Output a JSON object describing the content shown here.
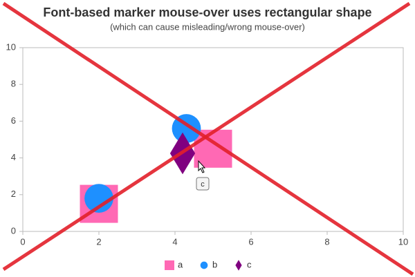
{
  "chart_data": {
    "type": "scatter",
    "title": "Font-based marker mouse-over uses rectangular shape",
    "subtitle": "(which can cause misleading/wrong mouse-over)",
    "xlim": [
      0,
      10
    ],
    "xticks": [
      0,
      2,
      4,
      6,
      8,
      10
    ],
    "ylim": [
      0,
      10
    ],
    "yticks": [
      0,
      2,
      4,
      6,
      8,
      10
    ],
    "grid": false,
    "legend": "bottom",
    "series": [
      {
        "name": "a",
        "color": "#ff69b4",
        "marker": "square",
        "x": [
          2,
          5
        ],
        "values": [
          1.5,
          4.5
        ]
      },
      {
        "name": "b",
        "color": "#1e90ff",
        "marker": "circle",
        "x": [
          2,
          4.3
        ],
        "values": [
          1.8,
          5.6
        ]
      },
      {
        "name": "c",
        "color": "#800080",
        "marker": "diamond",
        "x": [
          4.2
        ],
        "values": [
          4.25
        ]
      }
    ]
  }
}
